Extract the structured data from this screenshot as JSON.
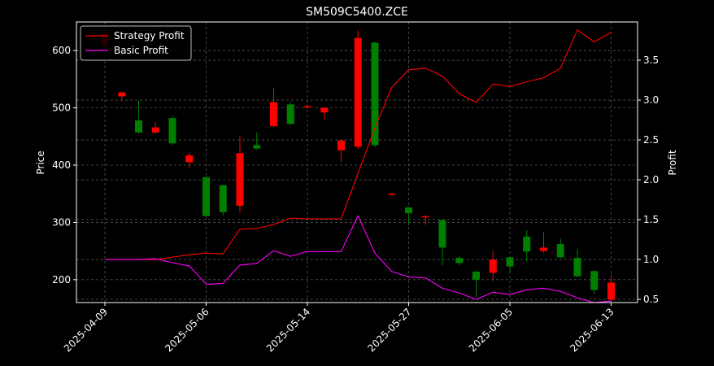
{
  "chart_data": {
    "type": "candlestick+line",
    "title": "SM509C5400.ZCE",
    "xlabel": "",
    "ylabel_left": "Price",
    "ylabel_right": "Profit",
    "ylim_left": [
      160,
      650
    ],
    "ylim_right": [
      0.46,
      3.98
    ],
    "yticks_left": [
      200,
      300,
      400,
      500,
      600
    ],
    "yticks_right": [
      0.5,
      1.0,
      1.5,
      2.0,
      2.5,
      3.0,
      3.5
    ],
    "xtick_labels": [
      {
        "label": "2025-04-09",
        "index": 0
      },
      {
        "label": "2025-05-06",
        "index": 6
      },
      {
        "label": "2025-05-14",
        "index": 12
      },
      {
        "label": "2025-05-27",
        "index": 18
      },
      {
        "label": "2025-06-05",
        "index": 24
      },
      {
        "label": "2025-06-13",
        "index": 30
      }
    ],
    "grid": true,
    "legend_position": "top-left",
    "colors": {
      "up": "#008000",
      "down": "#ff0000",
      "strategy": "#ff0000",
      "basic": "#ff00ff",
      "grid": "#555555",
      "axes": "#ffffff"
    },
    "candles": [
      {
        "i": 0,
        "open": 630,
        "close": 610,
        "high": 640,
        "low": 600
      },
      {
        "i": 1,
        "open": 527,
        "close": 520,
        "high": 528,
        "low": 512
      },
      {
        "i": 2,
        "open": 457,
        "close": 478,
        "high": 513,
        "low": 455
      },
      {
        "i": 3,
        "open": 466,
        "close": 457,
        "high": 475,
        "low": 455
      },
      {
        "i": 4,
        "open": 438,
        "close": 482,
        "high": 485,
        "low": 435
      },
      {
        "i": 5,
        "open": 417,
        "close": 405,
        "high": 422,
        "low": 395
      },
      {
        "i": 6,
        "open": 311,
        "close": 379,
        "high": 380,
        "low": 310
      },
      {
        "i": 7,
        "open": 318,
        "close": 365,
        "high": 366,
        "low": 312
      },
      {
        "i": 8,
        "open": 421,
        "close": 329,
        "high": 450,
        "low": 317
      },
      {
        "i": 9,
        "open": 429,
        "close": 435,
        "high": 457,
        "low": 427
      },
      {
        "i": 10,
        "open": 510,
        "close": 468,
        "high": 535,
        "low": 466
      },
      {
        "i": 11,
        "open": 472,
        "close": 506,
        "high": 510,
        "low": 470
      },
      {
        "i": 12,
        "open": 503,
        "close": 502,
        "high": 506,
        "low": 499
      },
      {
        "i": 13,
        "open": 500,
        "close": 492,
        "high": 501,
        "low": 480
      },
      {
        "i": 14,
        "open": 443,
        "close": 426,
        "high": 444,
        "low": 405
      },
      {
        "i": 15,
        "open": 622,
        "close": 432,
        "high": 635,
        "low": 428
      },
      {
        "i": 16,
        "open": 435,
        "close": 614,
        "high": 615,
        "low": 432
      },
      {
        "i": 17,
        "open": 350,
        "close": 349,
        "high": 351,
        "low": 349
      },
      {
        "i": 18,
        "open": 316,
        "close": 326,
        "high": 327,
        "low": 295
      },
      {
        "i": 19,
        "open": 311,
        "close": 309,
        "high": 312,
        "low": 296
      },
      {
        "i": 20,
        "open": 256,
        "close": 304,
        "high": 305,
        "low": 225
      },
      {
        "i": 21,
        "open": 229,
        "close": 238,
        "high": 242,
        "low": 225
      },
      {
        "i": 22,
        "open": 200,
        "close": 214,
        "high": 216,
        "low": 170
      },
      {
        "i": 23,
        "open": 235,
        "close": 212,
        "high": 250,
        "low": 198
      },
      {
        "i": 24,
        "open": 223,
        "close": 239,
        "high": 241,
        "low": 213
      },
      {
        "i": 25,
        "open": 249,
        "close": 275,
        "high": 286,
        "low": 232
      },
      {
        "i": 26,
        "open": 256,
        "close": 250,
        "high": 283,
        "low": 247
      },
      {
        "i": 27,
        "open": 239,
        "close": 262,
        "high": 272,
        "low": 238
      },
      {
        "i": 28,
        "open": 206,
        "close": 238,
        "high": 254,
        "low": 204
      },
      {
        "i": 29,
        "open": 182,
        "close": 215,
        "high": 216,
        "low": 175
      },
      {
        "i": 30,
        "open": 195,
        "close": 165,
        "high": 209,
        "low": 163
      }
    ],
    "series": [
      {
        "name": "Strategy Profit",
        "values": [
          1.0,
          1.0,
          1.0,
          1.0,
          1.03,
          1.06,
          1.08,
          1.07,
          1.38,
          1.39,
          1.44,
          1.52,
          1.51,
          1.51,
          1.51,
          2.08,
          2.65,
          3.16,
          3.38,
          3.4,
          3.3,
          3.08,
          2.97,
          3.2,
          3.17,
          3.23,
          3.28,
          3.4,
          3.88,
          3.73,
          3.85
        ]
      },
      {
        "name": "Basic Profit",
        "values": [
          1.0,
          1.0,
          1.0,
          1.01,
          0.96,
          0.92,
          0.69,
          0.7,
          0.93,
          0.95,
          1.11,
          1.04,
          1.1,
          1.1,
          1.1,
          1.55,
          1.08,
          0.85,
          0.78,
          0.77,
          0.64,
          0.58,
          0.5,
          0.59,
          0.56,
          0.62,
          0.64,
          0.6,
          0.52,
          0.46,
          0.48
        ]
      }
    ]
  }
}
